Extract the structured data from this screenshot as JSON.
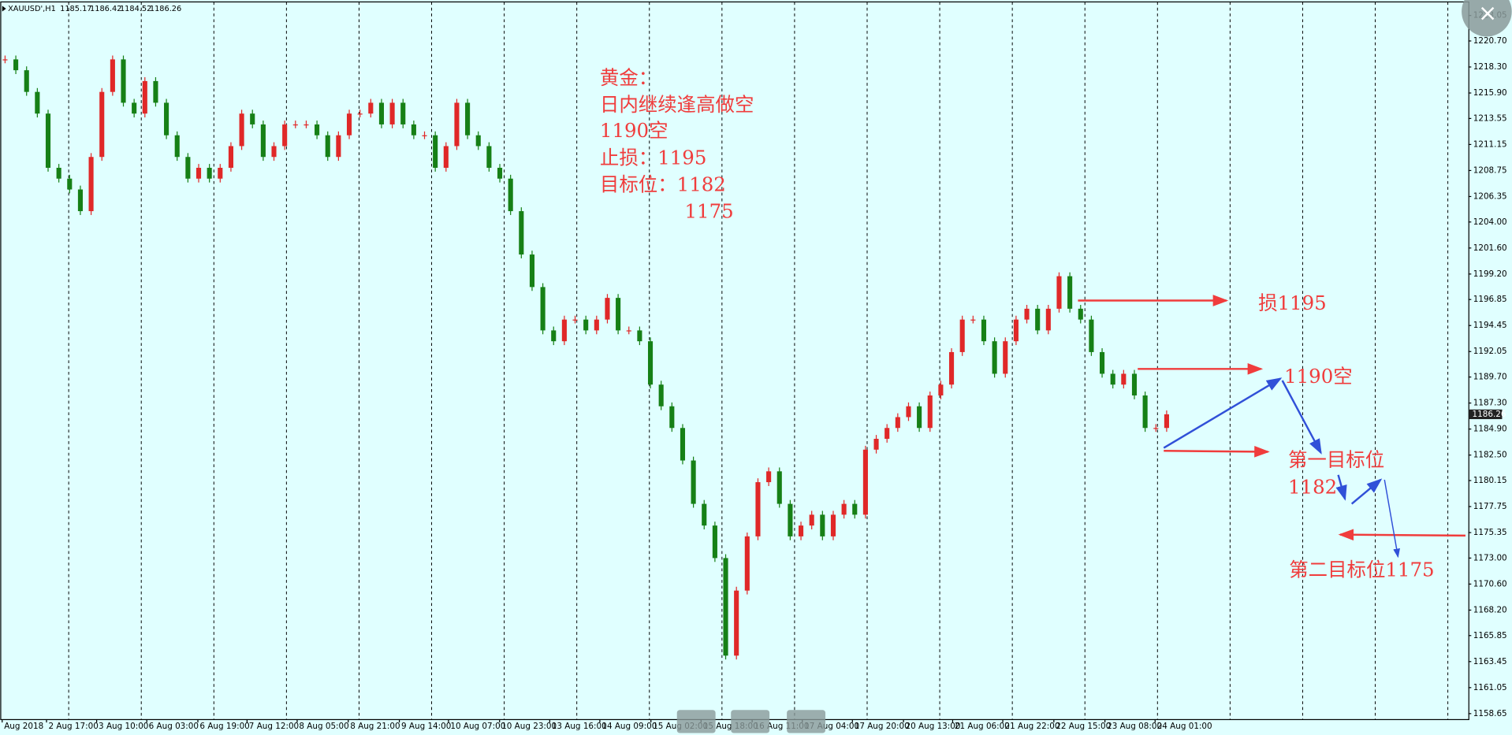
{
  "chart_data": {
    "type": "candlestick",
    "header": {
      "symbol": "XAUUSD',H1",
      "ohlc": [
        1185.17,
        1186.42,
        1184.52,
        1186.26
      ]
    },
    "up_color": "#e02828",
    "down_color": "#168016",
    "ylim": [
      1158.1,
      1224.3
    ],
    "yticks": [
      1223.05,
      {
        "value": 1220.7,
        "label": "1220.70"
      },
      {
        "value": 1218.3,
        "label": "1218.30"
      },
      {
        "value": 1215.9,
        "label": "1215.90"
      },
      1213.55,
      1211.15,
      1208.75,
      1206.35,
      {
        "value": 1204,
        "label": "1204.00"
      },
      {
        "value": 1201.6,
        "label": "1201.60"
      },
      {
        "value": 1199.2,
        "label": "1199.20"
      },
      1196.85,
      1194.45,
      1192.05,
      {
        "value": 1189.7,
        "label": "1189.70"
      },
      {
        "value": 1187.3,
        "label": "1187.30"
      },
      {
        "value": 1184.9,
        "label": "1184.90"
      },
      {
        "value": 1182.5,
        "label": "1182.50"
      },
      1180.15,
      1177.75,
      1175.35,
      {
        "value": 1173,
        "label": "1173.00"
      },
      {
        "value": 1170.6,
        "label": "1170.60"
      },
      {
        "value": 1168.2,
        "label": "1168.20"
      },
      1165.85,
      1163.45,
      1161.05,
      1158.65
    ],
    "x_labels": [
      "Aug 2018",
      "2 Aug 17:00",
      "3 Aug 10:00",
      "6 Aug 03:00",
      "6 Aug 19:00",
      "7 Aug 12:00",
      "8 Aug 05:00",
      "8 Aug 21:00",
      "9 Aug 14:00",
      "10 Aug 07:00",
      "10 Aug 23:00",
      "13 Aug 16:00",
      "14 Aug 09:00",
      "15 Aug 02:00",
      "15 Aug 18:00",
      "16 Aug 11:00",
      "17 Aug 04:00",
      "17 Aug 20:00",
      "20 Aug 13:00",
      "21 Aug 06:00",
      "21 Aug 22:00",
      "22 Aug 15:00",
      "23 Aug 08:00",
      "24 Aug 01:00"
    ],
    "closes": [
      1219,
      1218,
      1216,
      1214,
      1209,
      1208,
      1207,
      1205,
      1210,
      1216,
      1219,
      1215,
      1214,
      1217,
      1215,
      1212,
      1210,
      1208,
      1209,
      1208,
      1209,
      1211,
      1214,
      1213,
      1210,
      1211,
      1213,
      1213,
      1213,
      1212,
      1210,
      1212,
      1214,
      1214,
      1215,
      1213,
      1215,
      1213,
      1212,
      1212,
      1209,
      1211,
      1215,
      1212,
      1211,
      1209,
      1208,
      1205,
      1201,
      1198,
      1194,
      1193,
      1195,
      1195,
      1194,
      1195,
      1197,
      1194,
      1194,
      1193,
      1189,
      1187,
      1185,
      1182,
      1178,
      1176,
      1173,
      1164,
      1170,
      1175,
      1180,
      1181,
      1178,
      1175,
      1176,
      1177,
      1175,
      1177,
      1178,
      1177,
      1183,
      1184,
      1185,
      1186,
      1187,
      1185,
      1188,
      1189,
      1192,
      1195,
      1195,
      1193,
      1190,
      1193,
      1195,
      1196,
      1194,
      1196,
      1199,
      1196,
      1195,
      1192,
      1190,
      1189,
      1190,
      1188,
      1185,
      1185,
      1186.26
    ],
    "annotations": [
      "黄金：",
      "日内继续逢高做空",
      "1190空",
      "止损：1195",
      "目标位：1182",
      "1175",
      "损1195",
      "1190空",
      "第一目标位",
      "1182",
      "第二目标位1175"
    ]
  }
}
